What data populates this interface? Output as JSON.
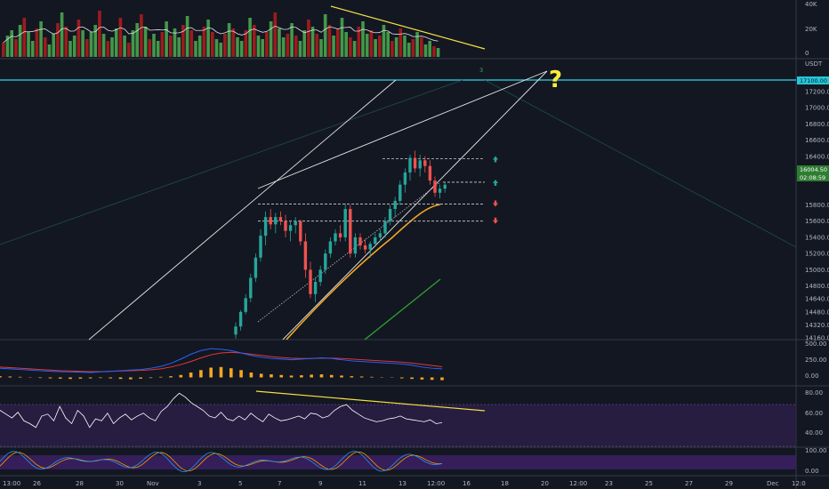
{
  "chart_data": {
    "type": "candlestick",
    "symbol_unit": "USDT",
    "colors": {
      "background": "#131722",
      "up": "#26a69a",
      "down": "#ef5350",
      "volume_up": "#4caf50",
      "volume_down": "#b71c1c",
      "trendline_yellow": "#f5e142",
      "ma_orange": "#f5a623",
      "ma_green": "#2e9e2e",
      "cyan_level": "#33d6e6",
      "macd_blue": "#2962ff",
      "macd_red": "#e53935",
      "rsi_fill": "#2b1f45",
      "question_mark": "#ffeb3b"
    },
    "volume_panel": {
      "ticks": [
        "40K",
        "20K",
        "0"
      ],
      "ylim": [
        0,
        42000
      ]
    },
    "price_panel": {
      "ylim": [
        14160,
        17560
      ],
      "ticks": [
        "17200.00",
        "17000.00",
        "16800.00",
        "16600.00",
        "16400.00",
        "16200.00",
        "15800.00",
        "15600.00",
        "15400.00",
        "15200.00",
        "15000.00",
        "14800.00",
        "14640.00",
        "14480.00",
        "14320.00",
        "14160.00"
      ],
      "tick_values": [
        17200,
        17000,
        16800,
        16600,
        16400,
        16200,
        15800,
        15600,
        15400,
        15200,
        15000,
        14800,
        14640,
        14480,
        14320,
        14160
      ],
      "current_price": "16004.50",
      "current_price_value": 16004.5,
      "countdown": "02:08:59",
      "level_label": "17100.00",
      "level_value": 17100,
      "wave_label": "3",
      "question": "?",
      "dashed_levels": [
        16370,
        16080,
        15810,
        15600
      ],
      "arrow_dirs": [
        "up",
        "up",
        "down",
        "down"
      ]
    },
    "candles": [
      [
        14200,
        14350,
        14150,
        14300
      ],
      [
        14300,
        14500,
        14250,
        14480
      ],
      [
        14480,
        14700,
        14450,
        14650
      ],
      [
        14650,
        14950,
        14600,
        14900
      ],
      [
        14900,
        15200,
        14850,
        15150
      ],
      [
        15150,
        15500,
        15100,
        15420
      ],
      [
        15420,
        15720,
        15300,
        15650
      ],
      [
        15650,
        15750,
        15500,
        15560
      ],
      [
        15560,
        15700,
        15450,
        15650
      ],
      [
        15650,
        15720,
        15550,
        15600
      ],
      [
        15600,
        15680,
        15400,
        15480
      ],
      [
        15480,
        15600,
        15350,
        15550
      ],
      [
        15550,
        15650,
        15450,
        15600
      ],
      [
        15600,
        15620,
        15300,
        15350
      ],
      [
        15350,
        15450,
        14900,
        15000
      ],
      [
        15000,
        15100,
        14650,
        14700
      ],
      [
        14700,
        14900,
        14600,
        14850
      ],
      [
        14850,
        15050,
        14800,
        15000
      ],
      [
        15000,
        15250,
        14950,
        15200
      ],
      [
        15200,
        15400,
        15150,
        15350
      ],
      [
        15350,
        15500,
        15300,
        15450
      ],
      [
        15450,
        15550,
        15350,
        15400
      ],
      [
        15400,
        15820,
        15350,
        15750
      ],
      [
        15750,
        15800,
        15150,
        15200
      ],
      [
        15200,
        15450,
        15150,
        15400
      ],
      [
        15400,
        15450,
        15250,
        15300
      ],
      [
        15300,
        15380,
        15200,
        15250
      ],
      [
        15250,
        15350,
        15150,
        15320
      ],
      [
        15320,
        15450,
        15280,
        15400
      ],
      [
        15400,
        15500,
        15350,
        15450
      ],
      [
        15450,
        15650,
        15400,
        15600
      ],
      [
        15600,
        15800,
        15550,
        15750
      ],
      [
        15750,
        15900,
        15650,
        15850
      ],
      [
        15850,
        16100,
        15800,
        16050
      ],
      [
        16050,
        16250,
        15950,
        16200
      ],
      [
        16200,
        16420,
        16100,
        16380
      ],
      [
        16380,
        16470,
        16200,
        16250
      ],
      [
        16250,
        16420,
        16150,
        16350
      ],
      [
        16350,
        16400,
        16200,
        16280
      ],
      [
        16280,
        16350,
        16050,
        16100
      ],
      [
        16100,
        16150,
        15900,
        15950
      ],
      [
        15950,
        16050,
        15880,
        16000
      ],
      [
        16000,
        16080,
        15950,
        16050
      ]
    ],
    "volumes": [
      8,
      12,
      15,
      10,
      18,
      22,
      14,
      9,
      16,
      20,
      11,
      7,
      13,
      19,
      25,
      17,
      9,
      12,
      21,
      15,
      10,
      14,
      18,
      26,
      13,
      9,
      11,
      16,
      22,
      12,
      8,
      15,
      19,
      24,
      17,
      10,
      13,
      9,
      14,
      20,
      12,
      16,
      11,
      18,
      23,
      15,
      9,
      12,
      17,
      21,
      14,
      10,
      8,
      13,
      19,
      16,
      11,
      9,
      15,
      22,
      18,
      12,
      10,
      14,
      20,
      25,
      16,
      11,
      13,
      19,
      12,
      9,
      15,
      21,
      17,
      13,
      10,
      24,
      18,
      12,
      16,
      22,
      14,
      11,
      9,
      17,
      20,
      13,
      15,
      10,
      12,
      18,
      14,
      9,
      11,
      16,
      12,
      8,
      10,
      14,
      11,
      7,
      9,
      6,
      5
    ],
    "macd_panel": {
      "ticks": [
        "500.00",
        "250.00",
        "0.00"
      ],
      "ylim": [
        -80,
        560
      ],
      "hist": [
        20,
        15,
        10,
        5,
        -10,
        -15,
        -20,
        -25,
        -20,
        -15,
        -10,
        -15,
        -25,
        -30,
        -20,
        -10,
        10,
        20,
        40,
        80,
        120,
        160,
        170,
        150,
        120,
        80,
        60,
        50,
        40,
        30,
        35,
        45,
        50,
        40,
        30,
        20,
        15,
        10,
        5,
        -5,
        -15,
        -25,
        -35,
        -40,
        -45
      ],
      "macd": [
        150,
        140,
        130,
        120,
        110,
        100,
        95,
        90,
        85,
        80,
        90,
        100,
        110,
        120,
        130,
        150,
        180,
        230,
        300,
        380,
        440,
        470,
        460,
        440,
        400,
        360,
        330,
        310,
        300,
        290,
        300,
        310,
        320,
        310,
        290,
        270,
        260,
        250,
        240,
        230,
        220,
        200,
        170,
        150,
        140
      ],
      "signal": [
        170,
        160,
        150,
        140,
        130,
        120,
        110,
        105,
        100,
        95,
        95,
        100,
        105,
        110,
        115,
        125,
        140,
        170,
        210,
        260,
        320,
        370,
        400,
        410,
        400,
        380,
        360,
        340,
        325,
        315,
        310,
        310,
        315,
        315,
        310,
        300,
        290,
        280,
        270,
        260,
        250,
        235,
        215,
        195,
        175
      ]
    },
    "rsi_panel": {
      "ticks": [
        "80.00",
        "60.00",
        "40.00"
      ],
      "ylim": [
        30,
        88
      ],
      "band_top": 70,
      "band_bottom": 30,
      "values": [
        66,
        62,
        58,
        64,
        55,
        52,
        48,
        60,
        62,
        55,
        70,
        58,
        52,
        66,
        60,
        48,
        57,
        55,
        63,
        52,
        58,
        62,
        56,
        60,
        63,
        58,
        55,
        65,
        70,
        78,
        84,
        80,
        74,
        70,
        66,
        60,
        58,
        64,
        57,
        55,
        60,
        56,
        63,
        58,
        54,
        62,
        58,
        55,
        56,
        58,
        60,
        57,
        63,
        62,
        58,
        60,
        66,
        70,
        72,
        66,
        62,
        58,
        56,
        54,
        55,
        57,
        58,
        60,
        57,
        56,
        55,
        54,
        56,
        52,
        53
      ]
    },
    "stoch_panel": {
      "ticks": [
        "100.00",
        "0.00"
      ],
      "ylim": [
        0,
        100
      ]
    },
    "x_axis": {
      "labels": [
        "13:00",
        "26",
        "28",
        "30",
        "Nov",
        "3",
        "5",
        "7",
        "9",
        "11",
        "13",
        "12:00",
        "16",
        "18",
        "20",
        "12:00",
        "23",
        "25",
        "27",
        "29",
        "Dec",
        "12:0"
      ]
    }
  }
}
